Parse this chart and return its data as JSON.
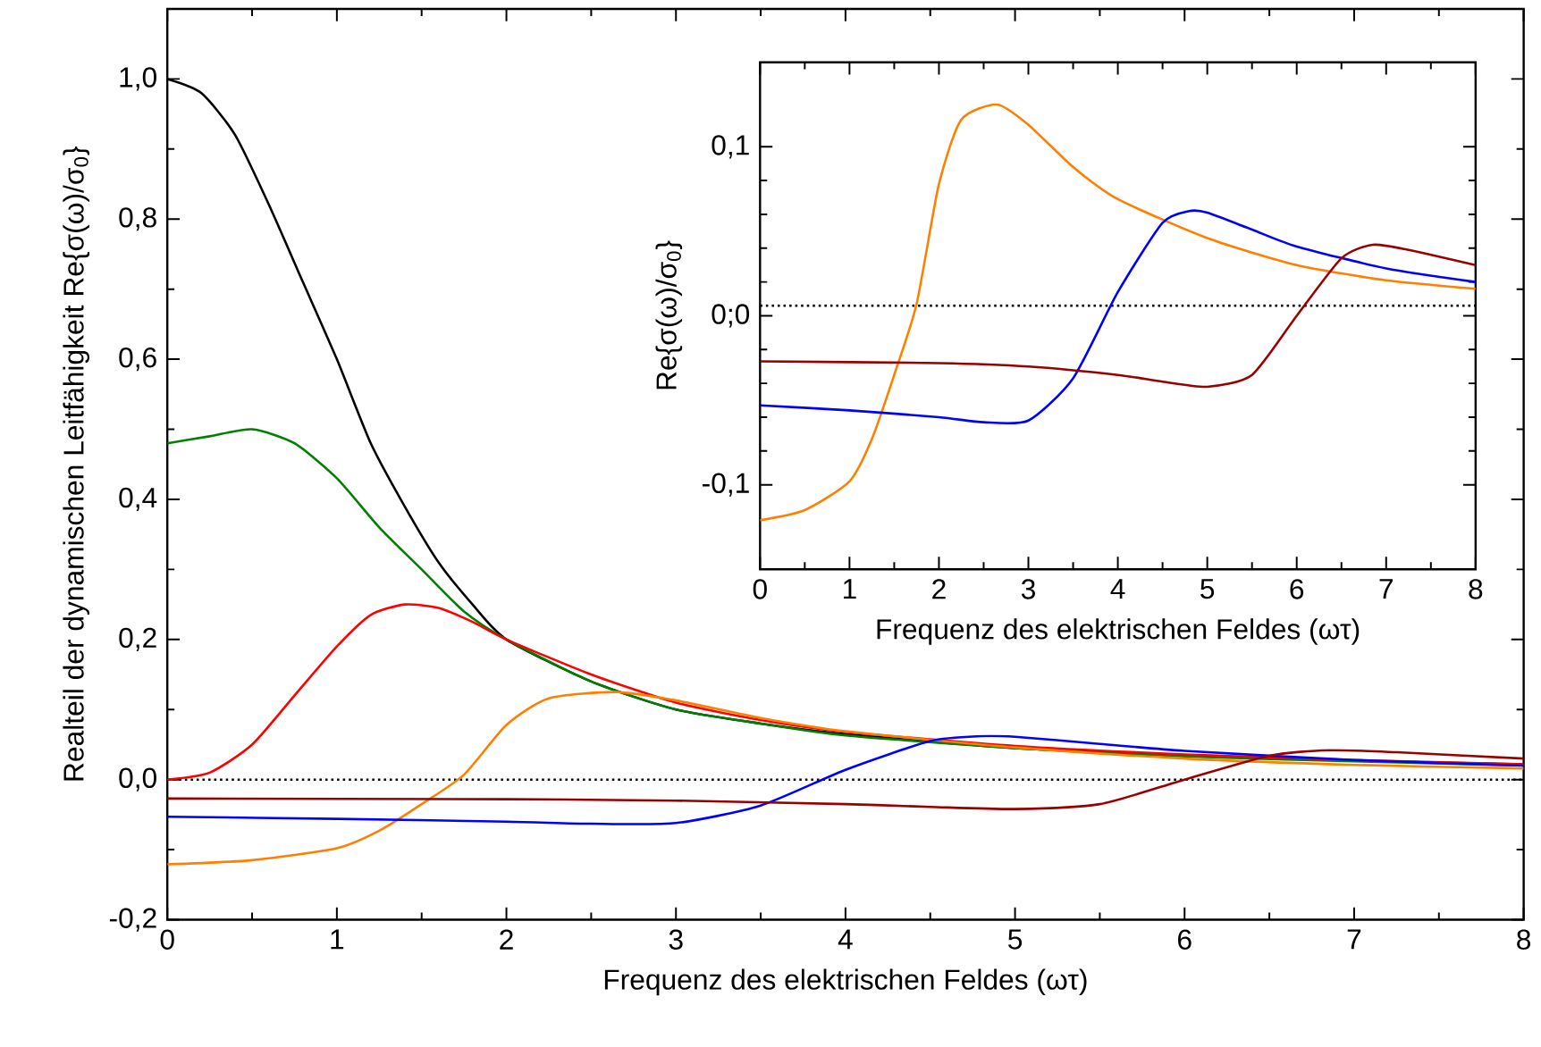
{
  "chart_data": [
    {
      "type": "line",
      "xlabel": "Frequenz des elektrischen Feldes (ωτ)",
      "ylabel": "Realteil der dynamischen Leitfähigkeit Re{σ(ω)/σ$_{0}$}",
      "xlim": [
        0,
        8
      ],
      "ylim": [
        -0.2,
        1.1
      ],
      "xticks": [
        0,
        1,
        2,
        3,
        4,
        5,
        6,
        7,
        8
      ],
      "yticks": [
        {
          "value": -0.2,
          "label": "-0,2"
        },
        {
          "value": 0,
          "label": "0,0"
        },
        {
          "value": 0.2,
          "label": "0,2"
        },
        {
          "value": 0.4,
          "label": "0,4"
        },
        {
          "value": 0.6,
          "label": "0,6"
        },
        {
          "value": 0.8,
          "label": "0,8"
        },
        {
          "value": 1.0,
          "label": "1,0"
        }
      ],
      "ref_lines": [
        {
          "axis": "y",
          "value": 0,
          "line_style": "dotted",
          "color": "#000000"
        }
      ],
      "series": [
        {
          "color": "#000000",
          "x": [
            0,
            0.2,
            0.4,
            0.6,
            0.8,
            1.0,
            1.2,
            1.4,
            1.6,
            1.8,
            2.0,
            2.5,
            3,
            3.5,
            4,
            5,
            6,
            7,
            8
          ],
          "values": [
            1.0,
            0.98,
            0.92,
            0.82,
            0.71,
            0.6,
            0.48,
            0.39,
            0.31,
            0.25,
            0.2,
            0.14,
            0.1,
            0.08,
            0.065,
            0.045,
            0.035,
            0.027,
            0.022
          ]
        },
        {
          "color": "#008000",
          "x": [
            0,
            0.25,
            0.5,
            0.75,
            1.0,
            1.25,
            1.5,
            1.75,
            2.0,
            2.5,
            3,
            3.5,
            4,
            5,
            6,
            7,
            8
          ],
          "values": [
            0.48,
            0.49,
            0.5,
            0.48,
            0.43,
            0.36,
            0.3,
            0.24,
            0.2,
            0.14,
            0.1,
            0.08,
            0.063,
            0.045,
            0.033,
            0.026,
            0.02
          ]
        },
        {
          "color": "#ff0000",
          "x": [
            0,
            0.25,
            0.5,
            0.75,
            1.0,
            1.2,
            1.4,
            1.6,
            1.8,
            2.0,
            2.5,
            3,
            3.5,
            4,
            5,
            6,
            7,
            8
          ],
          "values": [
            0,
            0.01,
            0.05,
            0.12,
            0.19,
            0.235,
            0.25,
            0.245,
            0.225,
            0.2,
            0.15,
            0.11,
            0.085,
            0.068,
            0.048,
            0.036,
            0.028,
            0.022
          ]
        },
        {
          "color": "#ff8000",
          "x": [
            0,
            0.5,
            1,
            1.25,
            1.5,
            1.75,
            2,
            2.25,
            2.65,
            3,
            3.5,
            4,
            5,
            6,
            7,
            8
          ],
          "values": [
            -0.121,
            -0.115,
            -0.098,
            -0.073,
            -0.035,
            0.007,
            0.078,
            0.116,
            0.125,
            0.113,
            0.088,
            0.069,
            0.046,
            0.03,
            0.021,
            0.016
          ]
        },
        {
          "color": "#0000ff",
          "x": [
            0,
            1,
            2,
            2.5,
            3,
            3.5,
            4,
            4.5,
            4.8,
            5,
            5.5,
            6,
            7,
            8
          ],
          "values": [
            -0.053,
            -0.056,
            -0.06,
            -0.063,
            -0.062,
            -0.037,
            0.014,
            0.055,
            0.062,
            0.061,
            0.051,
            0.041,
            0.028,
            0.02
          ]
        },
        {
          "color": "#990000",
          "x": [
            0,
            2,
            3,
            4,
            4.5,
            5,
            5.5,
            6,
            6.5,
            6.85,
            7.25,
            8
          ],
          "values": [
            -0.027,
            -0.028,
            -0.03,
            -0.035,
            -0.039,
            -0.042,
            -0.035,
            0.0,
            0.034,
            0.042,
            0.039,
            0.03
          ]
        }
      ]
    },
    {
      "type": "line",
      "xlabel": "Frequenz des elektrischen Feldes (ωτ)",
      "ylabel": "Re{σ(ω)/σ$_{0}$}",
      "xlim": [
        0,
        8
      ],
      "ylim": [
        -0.15,
        0.15
      ],
      "xticks": [
        0,
        1,
        2,
        3,
        4,
        5,
        6,
        7,
        8
      ],
      "yticks": [
        {
          "value": -0.1,
          "label": "-0,1"
        },
        {
          "value": 0,
          "label": "0;0"
        },
        {
          "value": 0.1,
          "label": "0,1"
        }
      ],
      "ref_lines": [
        {
          "axis": "y",
          "value": 0.006,
          "line_style": "dotted",
          "color": "#000000"
        }
      ],
      "series": [
        {
          "color": "#ff8000",
          "x": [
            0,
            0.5,
            1,
            1.25,
            1.5,
            1.75,
            2,
            2.25,
            2.65,
            3,
            3.5,
            4,
            5,
            6,
            7,
            8
          ],
          "values": [
            -0.121,
            -0.115,
            -0.098,
            -0.073,
            -0.035,
            0.007,
            0.078,
            0.116,
            0.125,
            0.113,
            0.088,
            0.069,
            0.046,
            0.03,
            0.021,
            0.016
          ]
        },
        {
          "color": "#0000ff",
          "x": [
            0,
            1,
            2,
            2.5,
            3,
            3.5,
            4,
            4.5,
            4.8,
            5,
            5.5,
            6,
            7,
            8
          ],
          "values": [
            -0.053,
            -0.056,
            -0.06,
            -0.063,
            -0.062,
            -0.037,
            0.014,
            0.055,
            0.062,
            0.061,
            0.051,
            0.041,
            0.028,
            0.02
          ]
        },
        {
          "color": "#990000",
          "x": [
            0,
            2,
            3,
            4,
            4.5,
            5,
            5.5,
            6,
            6.5,
            6.85,
            7.25,
            8
          ],
          "values": [
            -0.027,
            -0.028,
            -0.03,
            -0.035,
            -0.039,
            -0.042,
            -0.035,
            0.0,
            0.034,
            0.042,
            0.039,
            0.03
          ]
        }
      ]
    }
  ]
}
